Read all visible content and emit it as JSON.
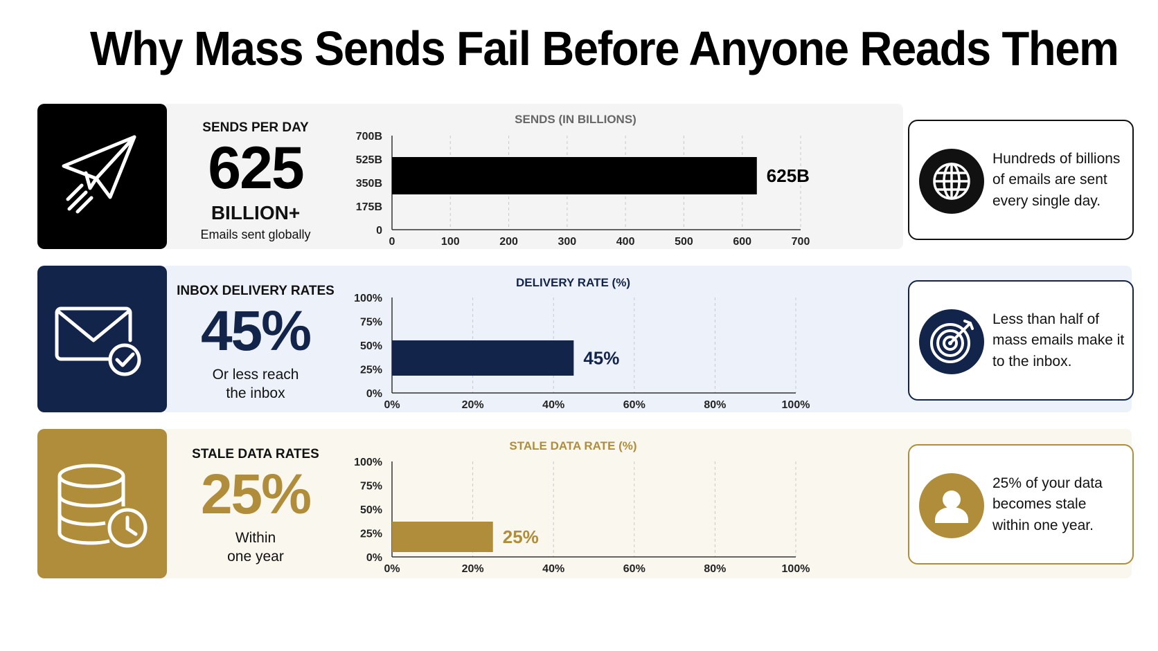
{
  "title": "Why Mass Sends Fail Before Anyone Reads Them",
  "colors": {
    "black": "#000000",
    "navy": "#13244a",
    "gold": "#b08d3a"
  },
  "rows": [
    {
      "icon": "paper-plane-icon",
      "stat_label": "SENDS PER DAY",
      "big": "625",
      "unit": "BILLION+",
      "sub": "Emails sent globally",
      "note_icon": "globe-icon",
      "note": "Hundreds of billions of emails are sent every single day."
    },
    {
      "icon": "envelope-check-icon",
      "stat_label": "INBOX DELIVERY RATES",
      "big": "45%",
      "sub": "Or less reach\nthe inbox",
      "note_icon": "target-icon",
      "note": "Less than half of mass emails make it to the inbox."
    },
    {
      "icon": "database-clock-icon",
      "stat_label": "STALE DATA RATES",
      "big": "25%",
      "sub": "Within\none year",
      "note_icon": "user-icon",
      "note": "25% of your data becomes stale within one year."
    }
  ],
  "chart_data": [
    {
      "type": "bar",
      "title": "SENDS (IN BILLIONS)",
      "orientation": "horizontal",
      "values": [
        625
      ],
      "value_labels": [
        "625B"
      ],
      "xlim": [
        0,
        700
      ],
      "x_ticks": [
        "0",
        "100",
        "200",
        "300",
        "400",
        "500",
        "600",
        "700"
      ],
      "y_ticks": [
        "0",
        "175B",
        "350B",
        "525B",
        "700B"
      ],
      "grid": "vertical-dashed"
    },
    {
      "type": "bar",
      "title": "DELIVERY RATE (%)",
      "orientation": "horizontal",
      "values": [
        45
      ],
      "value_labels": [
        "45%"
      ],
      "xlim": [
        0,
        100
      ],
      "x_ticks": [
        "0%",
        "20%",
        "40%",
        "60%",
        "80%",
        "100%"
      ],
      "y_ticks": [
        "0%",
        "25%",
        "50%",
        "75%",
        "100%"
      ],
      "grid": "vertical-dashed"
    },
    {
      "type": "bar",
      "title": "STALE DATA RATE (%)",
      "orientation": "horizontal",
      "values": [
        25
      ],
      "value_labels": [
        "25%"
      ],
      "xlim": [
        0,
        100
      ],
      "x_ticks": [
        "0%",
        "20%",
        "40%",
        "60%",
        "80%",
        "100%"
      ],
      "y_ticks": [
        "0%",
        "25%",
        "50%",
        "75%",
        "100%"
      ],
      "grid": "vertical-dashed"
    }
  ]
}
